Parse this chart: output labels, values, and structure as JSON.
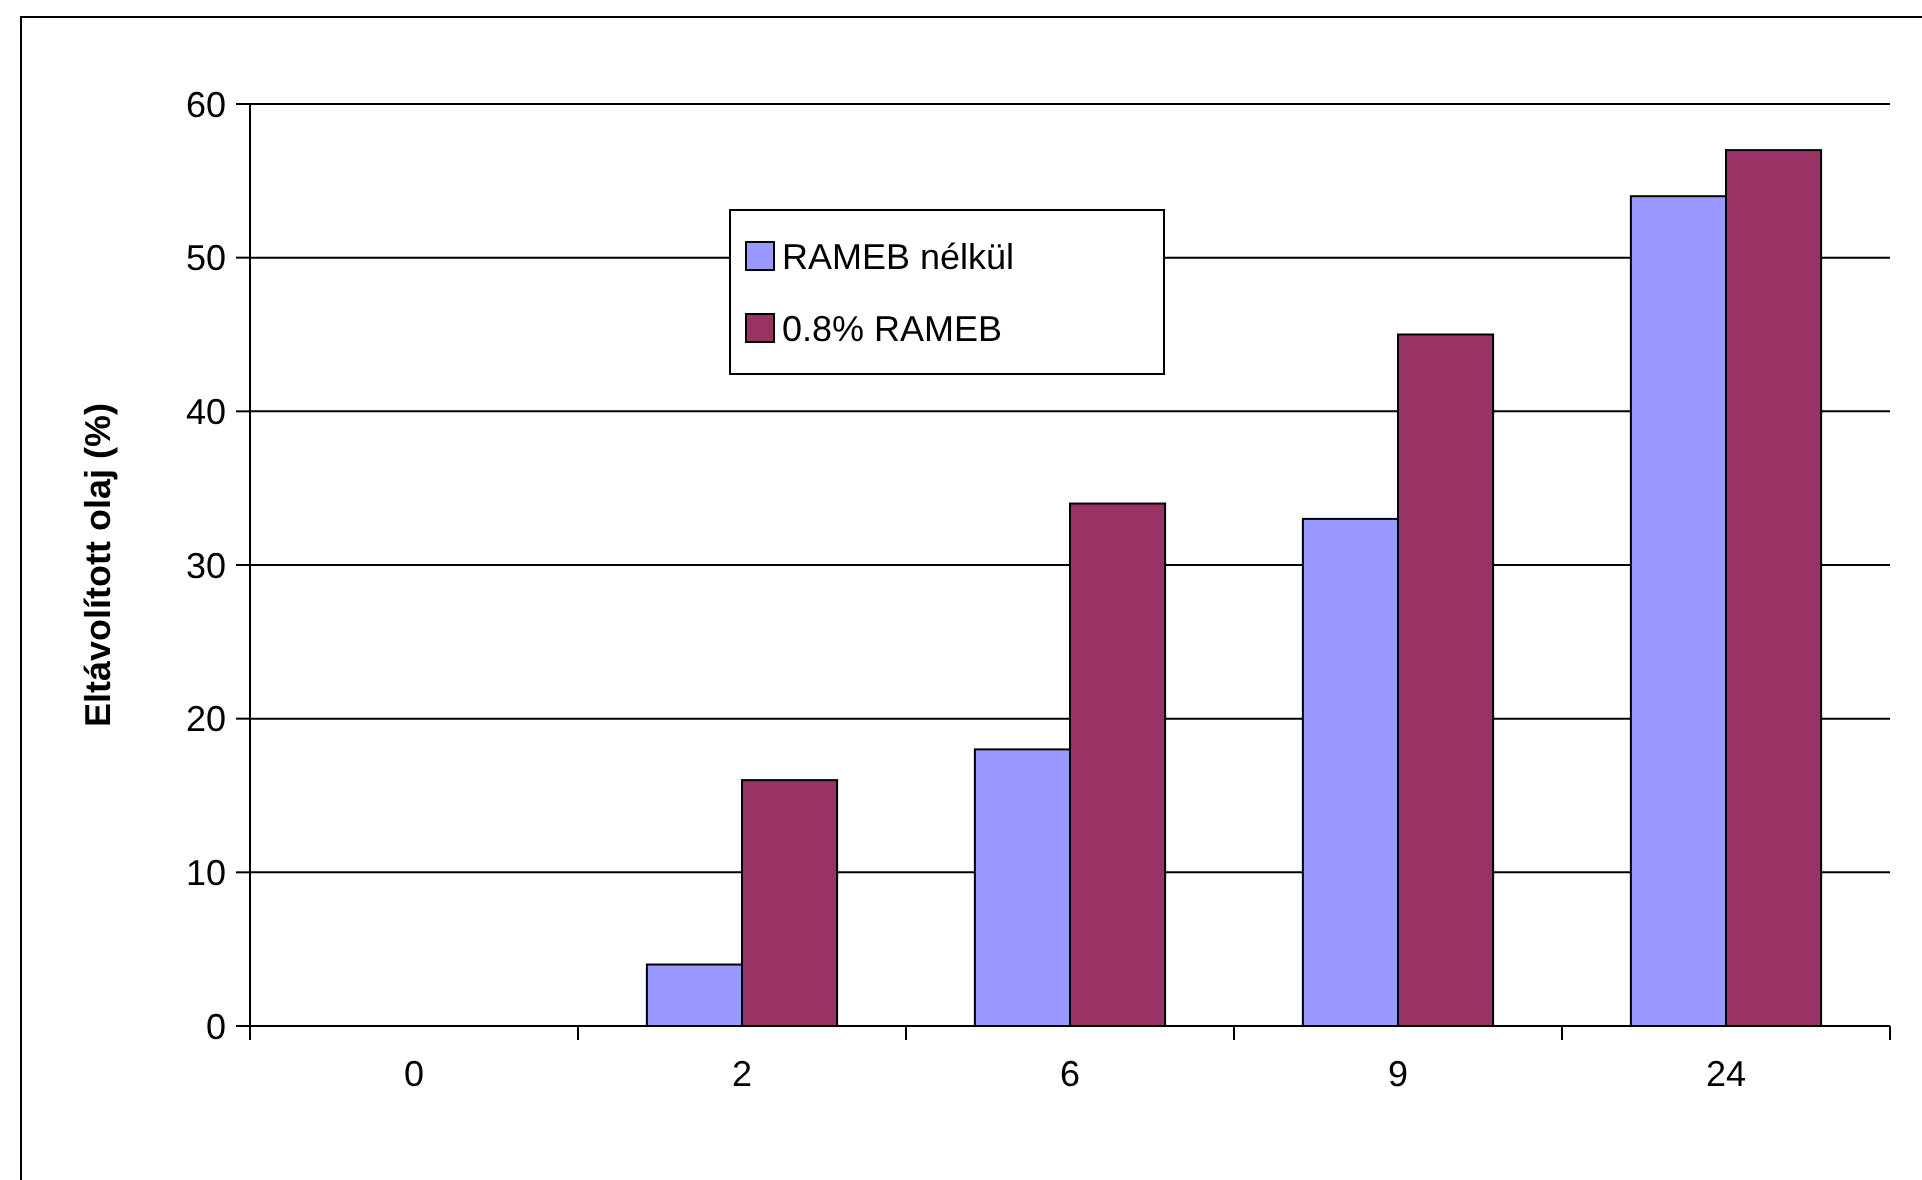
{
  "chart_data": {
    "type": "bar",
    "ylabel": "Eltávolított olaj (%)",
    "categories": [
      "0",
      "2",
      "6",
      "9",
      "24"
    ],
    "series": [
      {
        "name": "RAMEB nélkül",
        "color": "#9999ff",
        "values": [
          0,
          4,
          18,
          33,
          54
        ]
      },
      {
        "name": "0.8% RAMEB",
        "color": "#993366",
        "values": [
          0,
          16,
          34,
          45,
          57
        ]
      }
    ],
    "ylim": [
      0,
      60
    ],
    "yticks": [
      0,
      10,
      20,
      30,
      40,
      50,
      60
    ],
    "grid": "y",
    "legend": "top"
  }
}
